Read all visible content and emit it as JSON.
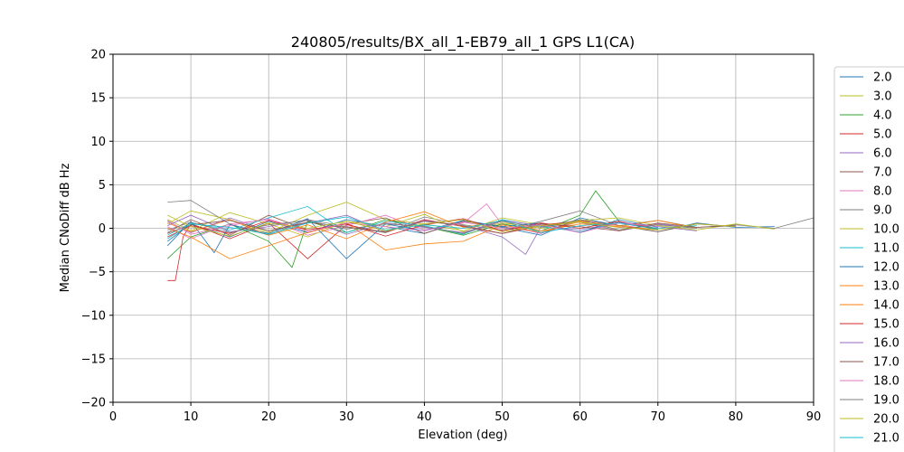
{
  "chart_data": {
    "type": "line",
    "title": "240805/results/BX_all_1-EB79_all_1 GPS L1(CA)",
    "xlabel": "Elevation (deg)",
    "ylabel": "Median CNoDiff dB Hz",
    "xlim": [
      0,
      90
    ],
    "ylim": [
      -20,
      20
    ],
    "x_ticks": [
      "0",
      "10",
      "20",
      "30",
      "40",
      "50",
      "60",
      "70",
      "80",
      "90"
    ],
    "y_ticks": [
      "20",
      "15",
      "10",
      "5",
      "0",
      "−5",
      "−10",
      "−15",
      "−20"
    ],
    "grid": true,
    "legend_position": "right",
    "series": [
      {
        "name": "2.0",
        "color": "#1f77b4",
        "x": [
          7,
          10,
          15,
          20,
          25,
          30,
          35,
          40,
          45,
          50,
          55,
          60,
          65,
          70,
          75,
          80,
          85
        ],
        "y": [
          -1.5,
          0.5,
          -1.0,
          0.8,
          -0.5,
          1.0,
          0.2,
          -0.6,
          0.9,
          0.1,
          -0.8,
          1.2,
          0.3,
          -0.4,
          0.6,
          0.1,
          0.2
        ]
      },
      {
        "name": "3.0",
        "color": "#bcbd22",
        "x": [
          7,
          10,
          15,
          20,
          25,
          30,
          35,
          40,
          45,
          50,
          55,
          60,
          65,
          70
        ],
        "y": [
          0.5,
          2.0,
          1.0,
          -0.5,
          1.5,
          3.0,
          1.0,
          0.5,
          -0.3,
          1.2,
          0.4,
          0.8,
          -0.2,
          0.5
        ]
      },
      {
        "name": "4.0",
        "color": "#2ca02c",
        "x": [
          7,
          10,
          15,
          20,
          23,
          25,
          30,
          35,
          40,
          45,
          50,
          55,
          60,
          62,
          65,
          70
        ],
        "y": [
          -3.5,
          -1.0,
          0.5,
          -1.5,
          -4.5,
          0.8,
          -0.5,
          1.0,
          0.2,
          -0.8,
          0.5,
          -0.3,
          1.5,
          4.3,
          0.8,
          -0.2
        ]
      },
      {
        "name": "5.0",
        "color": "#d62728",
        "x": [
          7,
          8,
          9,
          10,
          15,
          20,
          25,
          30,
          35,
          40,
          45,
          50,
          55,
          60,
          65
        ],
        "y": [
          -6.0,
          -6.0,
          -1.0,
          0.5,
          -1.2,
          0.6,
          -3.5,
          0.4,
          -0.5,
          1.0,
          0.2,
          -0.6,
          0.3,
          0.9,
          0.1
        ]
      },
      {
        "name": "6.0",
        "color": "#9467bd",
        "x": [
          7,
          10,
          15,
          20,
          25,
          30,
          35,
          40,
          45,
          50,
          53,
          55,
          60,
          65,
          70,
          75
        ],
        "y": [
          0.8,
          -0.5,
          1.2,
          -0.3,
          0.6,
          1.5,
          -0.4,
          0.9,
          0.3,
          -1.0,
          -3.0,
          0.2,
          0.7,
          -0.3,
          0.5,
          0.0
        ]
      },
      {
        "name": "7.0",
        "color": "#8c564b",
        "x": [
          7,
          10,
          15,
          20,
          25,
          30,
          35,
          40,
          45,
          50,
          55,
          60,
          65,
          70,
          75,
          80
        ],
        "y": [
          -0.5,
          1.0,
          -0.8,
          1.5,
          -0.2,
          0.5,
          1.2,
          -0.6,
          0.8,
          0.2,
          -0.5,
          1.0,
          0.3,
          -0.4,
          0.5,
          0.2
        ]
      },
      {
        "name": "8.0",
        "color": "#e377c2",
        "x": [
          7,
          10,
          15,
          20,
          25,
          30,
          35,
          40,
          45,
          48,
          50,
          55,
          60,
          65,
          70
        ],
        "y": [
          0.2,
          -1.2,
          0.5,
          1.0,
          -0.8,
          0.3,
          1.5,
          -0.2,
          0.6,
          2.8,
          0.4,
          -0.6,
          0.9,
          0.1,
          0.5
        ]
      },
      {
        "name": "9.0",
        "color": "#7f7f7f",
        "x": [
          7,
          10,
          15,
          20,
          25,
          30,
          35,
          40,
          45,
          50,
          55,
          60,
          65,
          70,
          75,
          80,
          85,
          90
        ],
        "y": [
          3.0,
          3.2,
          0.5,
          -0.8,
          1.0,
          0.2,
          -0.5,
          1.3,
          0.4,
          -0.2,
          0.8,
          2.0,
          0.3,
          0.9,
          0.1,
          0.4,
          0.0,
          1.2
        ]
      },
      {
        "name": "10.0",
        "color": "#bcbd22",
        "x": [
          7,
          10,
          15,
          20,
          25,
          30,
          35,
          40,
          45,
          50,
          55,
          60,
          65,
          70,
          75,
          80,
          85
        ],
        "y": [
          1.0,
          -0.3,
          1.8,
          0.5,
          -1.0,
          0.8,
          0.2,
          1.6,
          -0.4,
          0.6,
          0.0,
          0.9,
          1.2,
          0.3,
          -0.2,
          0.5,
          -0.1
        ]
      },
      {
        "name": "11.0",
        "color": "#17becf",
        "x": [
          7,
          10,
          15,
          20,
          25,
          30,
          35,
          40,
          45,
          50,
          55,
          60,
          65,
          70,
          75
        ],
        "y": [
          -0.8,
          0.6,
          -0.2,
          1.2,
          2.5,
          -0.5,
          0.8,
          0.3,
          -0.7,
          1.0,
          0.2,
          -0.4,
          0.7,
          0.0,
          0.3
        ]
      },
      {
        "name": "12.0",
        "color": "#1f77b4",
        "x": [
          7,
          10,
          13,
          15,
          20,
          25,
          30,
          35,
          40,
          45,
          50,
          55,
          60,
          65,
          70
        ],
        "y": [
          -2.0,
          0.8,
          -2.8,
          0.4,
          -0.6,
          1.1,
          -3.5,
          0.5,
          -0.3,
          0.9,
          0.2,
          0.6,
          -0.5,
          1.0,
          0.1
        ]
      },
      {
        "name": "13.0",
        "color": "#ff7f0e",
        "x": [
          7,
          10,
          15,
          20,
          25,
          30,
          35,
          40,
          45,
          50,
          55,
          60,
          65,
          70
        ],
        "y": [
          0.0,
          -1.0,
          -3.5,
          -2.0,
          -0.5,
          0.6,
          -2.5,
          -1.8,
          -1.5,
          0.4,
          -0.5,
          0.8,
          0.3,
          -0.2
        ]
      },
      {
        "name": "14.0",
        "color": "#ff7f0e",
        "x": [
          7,
          10,
          15,
          20,
          25,
          30,
          35,
          40,
          45,
          50,
          55,
          60,
          65,
          70,
          75
        ],
        "y": [
          0.6,
          -0.4,
          1.0,
          -0.8,
          0.4,
          -1.2,
          0.7,
          1.9,
          0.1,
          0.8,
          -0.3,
          0.5,
          0.2,
          0.9,
          0.0
        ]
      },
      {
        "name": "15.0",
        "color": "#d62728",
        "x": [
          7,
          10,
          15,
          20,
          25,
          30,
          35,
          40,
          45,
          50,
          55,
          60,
          65,
          70
        ],
        "y": [
          -1.0,
          0.3,
          -0.6,
          0.9,
          -0.2,
          0.5,
          -0.9,
          0.4,
          1.1,
          -0.3,
          0.6,
          0.0,
          0.8,
          -0.1
        ]
      },
      {
        "name": "16.0",
        "color": "#9467bd",
        "x": [
          7,
          10,
          15,
          20,
          25,
          30,
          35,
          40,
          45,
          50,
          55,
          60,
          65,
          70,
          75
        ],
        "y": [
          0.3,
          1.5,
          -0.4,
          0.2,
          1.0,
          -0.7,
          0.6,
          0.1,
          -0.5,
          0.9,
          0.3,
          -0.2,
          0.7,
          0.2,
          -0.3
        ]
      },
      {
        "name": "17.0",
        "color": "#8c564b",
        "x": [
          7,
          10,
          15,
          20,
          25,
          30,
          35,
          40,
          45,
          50,
          55,
          60,
          65,
          70,
          75,
          80
        ],
        "y": [
          -0.6,
          0.4,
          0.9,
          -0.3,
          0.7,
          0.1,
          -0.4,
          0.8,
          0.3,
          -0.6,
          0.5,
          0.2,
          -0.3,
          0.6,
          0.1,
          0.3
        ]
      },
      {
        "name": "18.0",
        "color": "#e377c2",
        "x": [
          7,
          10,
          15,
          20,
          25,
          30,
          35,
          40,
          45,
          50,
          55,
          60,
          65,
          70
        ],
        "y": [
          0.9,
          -0.7,
          0.3,
          1.1,
          -0.4,
          0.6,
          0.2,
          -0.3,
          0.7,
          0.0,
          0.4,
          -0.5,
          0.6,
          0.2
        ]
      },
      {
        "name": "19.0",
        "color": "#7f7f7f",
        "x": [
          7,
          10,
          15,
          20,
          25,
          30,
          35,
          40,
          45,
          50,
          55,
          60,
          65,
          70,
          75
        ],
        "y": [
          -0.2,
          0.7,
          -0.5,
          0.4,
          0.9,
          -0.1,
          0.5,
          0.2,
          -0.6,
          0.8,
          0.1,
          1.0,
          -0.2,
          0.4,
          0.0
        ]
      },
      {
        "name": "20.0",
        "color": "#bcbd22",
        "x": [
          7,
          10,
          15,
          20,
          25,
          30,
          35,
          40,
          45,
          50,
          55,
          60,
          65,
          70,
          75,
          80
        ],
        "y": [
          1.5,
          0.2,
          -0.9,
          0.6,
          0.0,
          0.8,
          -0.3,
          0.5,
          1.0,
          -0.4,
          0.3,
          0.7,
          0.1,
          -0.2,
          0.5,
          0.2
        ]
      },
      {
        "name": "21.0",
        "color": "#17becf",
        "x": [
          7,
          10,
          15,
          20,
          25,
          30,
          35,
          40,
          45,
          50,
          55,
          60,
          65,
          70
        ],
        "y": [
          -1.2,
          0.5,
          0.1,
          -0.7,
          0.6,
          1.3,
          -0.2,
          0.4,
          0.0,
          0.9,
          -0.5,
          0.3,
          0.6,
          -0.1
        ]
      }
    ]
  }
}
